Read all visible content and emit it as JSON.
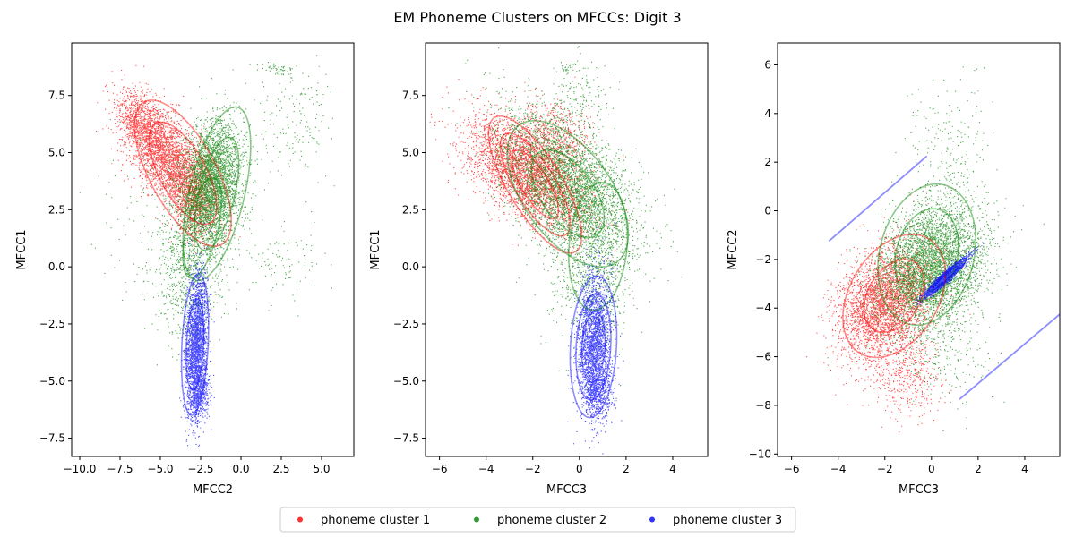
{
  "figure": {
    "title": "EM Phoneme Clusters on MFCCs: Digit 3"
  },
  "legend": {
    "placement": "bottom-center",
    "entries": [
      {
        "label": "phoneme cluster 1",
        "color": "#ff0000"
      },
      {
        "label": "phoneme cluster 2",
        "color": "#008000"
      },
      {
        "label": "phoneme cluster 3",
        "color": "#0000ff"
      }
    ]
  },
  "chart_data": [
    {
      "type": "scatter",
      "xlabel": "MFCC2",
      "ylabel": "MFCC1",
      "xlim": [
        -10.5,
        7.0
      ],
      "ylim": [
        -8.3,
        9.8
      ],
      "xticks": [
        -10.0,
        -7.5,
        -5.0,
        -2.5,
        0.0,
        2.5,
        5.0
      ],
      "xtick_labels": [
        "−10.0",
        "−7.5",
        "−5.0",
        "−2.5",
        "0.0",
        "2.5",
        "5.0"
      ],
      "yticks": [
        -7.5,
        -5.0,
        -2.5,
        0.0,
        2.5,
        5.0,
        7.5
      ],
      "ytick_labels": [
        "−7.5",
        "−5.0",
        "−2.5",
        "0.0",
        "2.5",
        "5.0",
        "7.5"
      ],
      "grid": false,
      "series": [
        {
          "color": "#ff0000",
          "points": [
            {
              "mx": -4.5,
              "my": 4.7,
              "sx": 1.3,
              "sy": 1.15,
              "rho": -0.55,
              "w": 0.4,
              "n": 2600
            },
            {
              "mx": -6.2,
              "my": 6.3,
              "sx": 0.8,
              "sy": 0.65,
              "rho": -0.4,
              "w": 0.1,
              "n": 700
            },
            {
              "mx": -3.0,
              "my": 3.0,
              "sx": 0.7,
              "sy": 0.9,
              "rho": -0.3,
              "w": 0.15,
              "n": 700
            }
          ],
          "ellipses": [
            {
              "cx": -3.6,
              "cy": 4.1,
              "sx": 1.5,
              "sy": 1.6,
              "rho": -0.65,
              "nsig": [
                1.4,
                2.0
              ]
            }
          ]
        },
        {
          "color": "#008000",
          "points": [
            {
              "mx": -1.8,
              "my": 3.6,
              "sx": 0.9,
              "sy": 1.4,
              "rho": 0.2,
              "w": 0.5,
              "n": 3800
            },
            {
              "mx": -3.2,
              "my": 0.3,
              "sx": 1.0,
              "sy": 1.8,
              "rho": 0.1,
              "w": 0.2,
              "n": 900
            },
            {
              "mx": 3.5,
              "my": 6.5,
              "sx": 1.3,
              "sy": 1.3,
              "rho": 0.1,
              "w": 0.04,
              "n": 170
            },
            {
              "mx": 2.5,
              "my": 0.2,
              "sx": 1.5,
              "sy": 0.9,
              "rho": 0.1,
              "w": 0.03,
              "n": 100
            },
            {
              "mx": 2.2,
              "my": 8.7,
              "sx": 0.6,
              "sy": 0.15,
              "rho": -0.3,
              "w": 0.01,
              "n": 45
            },
            {
              "mx": -5.0,
              "my": 2.0,
              "sx": 2.0,
              "sy": 2.0,
              "rho": 0.0,
              "w": 0.04,
              "n": 180
            }
          ],
          "ellipses": [
            {
              "cx": -1.5,
              "cy": 3.2,
              "sx": 1.05,
              "sy": 1.9,
              "rho": 0.55,
              "nsig": [
                1.3,
                2.0
              ]
            },
            {
              "cx": -2.4,
              "cy": 1.7,
              "sx": 1.2,
              "sy": 2.2,
              "rho": 0.55,
              "nsig": [
                1.0
              ]
            }
          ]
        },
        {
          "color": "#0000ff",
          "points": [
            {
              "mx": -2.8,
              "my": -3.3,
              "sx": 0.32,
              "sy": 1.5,
              "rho": 0.3,
              "w": 0.3,
              "n": 2300
            },
            {
              "mx": -2.6,
              "my": -5.5,
              "sx": 0.3,
              "sy": 0.6,
              "rho": 0.2,
              "w": 0.08,
              "n": 500
            }
          ],
          "ellipses": [
            {
              "cx": -2.85,
              "cy": -3.4,
              "sx": 0.42,
              "sy": 1.55,
              "rho": 0.25,
              "nsig": [
                1.3,
                2.0
              ]
            }
          ]
        }
      ],
      "segments": []
    },
    {
      "type": "scatter",
      "xlabel": "MFCC3",
      "ylabel": "MFCC1",
      "xlim": [
        -6.6,
        5.5
      ],
      "ylim": [
        -8.3,
        9.8
      ],
      "xticks": [
        -6,
        -4,
        -2,
        0,
        2,
        4
      ],
      "xtick_labels": [
        "−6",
        "−4",
        "−2",
        "0",
        "2",
        "4"
      ],
      "yticks": [
        -7.5,
        -5.0,
        -2.5,
        0.0,
        2.5,
        5.0,
        7.5
      ],
      "ytick_labels": [
        "−7.5",
        "−5.0",
        "−2.5",
        "0.0",
        "2.5",
        "5.0",
        "7.5"
      ],
      "grid": false,
      "series": [
        {
          "color": "#ff0000",
          "points": [
            {
              "mx": -2.3,
              "my": 4.2,
              "sx": 1.3,
              "sy": 1.2,
              "rho": -0.55,
              "w": 0.45,
              "n": 3200
            },
            {
              "mx": -1.0,
              "my": 5.8,
              "sx": 0.8,
              "sy": 0.8,
              "rho": -0.2,
              "w": 0.08,
              "n": 500
            }
          ],
          "ellipses": [
            {
              "cx": -1.9,
              "cy": 3.6,
              "sx": 1.0,
              "sy": 1.5,
              "rho": -0.75,
              "nsig": [
                1.0,
                1.5,
                2.0
              ]
            }
          ]
        },
        {
          "color": "#008000",
          "points": [
            {
              "mx": -0.5,
              "my": 3.5,
              "sx": 1.4,
              "sy": 1.6,
              "rho": -0.5,
              "w": 0.45,
              "n": 3800
            },
            {
              "mx": 0.6,
              "my": 0.0,
              "sx": 0.9,
              "sy": 1.8,
              "rho": 0.0,
              "w": 0.2,
              "n": 900
            },
            {
              "mx": 0.0,
              "my": 7.3,
              "sx": 0.7,
              "sy": 0.8,
              "rho": 0.0,
              "w": 0.02,
              "n": 150
            },
            {
              "mx": -0.5,
              "my": 8.7,
              "sx": 0.3,
              "sy": 0.15,
              "rho": 0.0,
              "w": 0.005,
              "n": 30
            }
          ],
          "ellipses": [
            {
              "cx": -0.5,
              "cy": 3.2,
              "sx": 1.3,
              "sy": 1.6,
              "rho": -0.55,
              "nsig": [
                1.2,
                2.0
              ]
            },
            {
              "cx": 0.8,
              "cy": 0.9,
              "sx": 0.9,
              "sy": 2.0,
              "rho": 0.15,
              "nsig": [
                1.4
              ]
            }
          ]
        },
        {
          "color": "#0000ff",
          "points": [
            {
              "mx": 0.6,
              "my": -3.3,
              "sx": 0.35,
              "sy": 1.5,
              "rho": 0.1,
              "w": 0.3,
              "n": 2300
            },
            {
              "mx": 0.8,
              "my": -5.5,
              "sx": 0.3,
              "sy": 0.6,
              "rho": 0.0,
              "w": 0.08,
              "n": 500
            }
          ],
          "ellipses": [
            {
              "cx": 0.6,
              "cy": -3.5,
              "sx": 0.5,
              "sy": 1.55,
              "rho": 0.15,
              "nsig": [
                1.0,
                1.5,
                2.0
              ]
            }
          ]
        }
      ],
      "segments": []
    },
    {
      "type": "scatter",
      "xlabel": "MFCC3",
      "ylabel": "MFCC2",
      "xlim": [
        -6.6,
        5.5
      ],
      "ylim": [
        -10.1,
        6.9
      ],
      "xticks": [
        -6,
        -4,
        -2,
        0,
        2,
        4
      ],
      "xtick_labels": [
        "−6",
        "−4",
        "−2",
        "0",
        "2",
        "4"
      ],
      "yticks": [
        -10,
        -8,
        -6,
        -4,
        -2,
        0,
        2,
        4,
        6
      ],
      "ytick_labels": [
        "−10",
        "−8",
        "−6",
        "−4",
        "−2",
        "0",
        "2",
        "4",
        "6"
      ],
      "grid": false,
      "series": [
        {
          "color": "#ff0000",
          "points": [
            {
              "mx": -2.0,
              "my": -3.8,
              "sx": 1.0,
              "sy": 1.1,
              "rho": 0.3,
              "w": 0.45,
              "n": 3300
            },
            {
              "mx": -1.0,
              "my": -6.8,
              "sx": 0.7,
              "sy": 0.8,
              "rho": 0.0,
              "w": 0.06,
              "n": 400
            }
          ],
          "ellipses": [
            {
              "cx": -1.6,
              "cy": -3.5,
              "sx": 1.0,
              "sy": 1.15,
              "rho": 0.35,
              "nsig": [
                1.3,
                2.2
              ]
            }
          ]
        },
        {
          "color": "#008000",
          "points": [
            {
              "mx": 0.0,
              "my": -2.2,
              "sx": 1.1,
              "sy": 1.2,
              "rho": 0.2,
              "w": 0.5,
              "n": 4200
            },
            {
              "mx": 0.8,
              "my": 2.0,
              "sx": 0.9,
              "sy": 1.6,
              "rho": 0.0,
              "w": 0.03,
              "n": 260
            },
            {
              "mx": 0.5,
              "my": -5.5,
              "sx": 1.0,
              "sy": 1.2,
              "rho": 0.0,
              "w": 0.04,
              "n": 300
            }
          ],
          "ellipses": [
            {
              "cx": -0.2,
              "cy": -1.8,
              "sx": 1.05,
              "sy": 1.45,
              "rho": 0.2,
              "nsig": [
                1.3,
                2.0
              ]
            }
          ]
        },
        {
          "color": "#0000ff",
          "points": [
            {
              "mx": 0.6,
              "my": -2.7,
              "sx": 0.45,
              "sy": 0.4,
              "rho": 0.95,
              "w": 0.3,
              "n": 1700
            }
          ],
          "ellipses": [
            {
              "cx": 0.6,
              "cy": -2.75,
              "sx": 0.45,
              "sy": 0.4,
              "rho": 0.96,
              "nsig": [
                1.2,
                2.0
              ]
            }
          ]
        }
      ],
      "segments": [
        {
          "color": "#0000ff",
          "x1": -4.4,
          "y1": -1.25,
          "x2": -0.2,
          "y2": 2.25
        },
        {
          "color": "#0000ff",
          "x1": 1.2,
          "y1": -7.75,
          "x2": 5.5,
          "y2": -4.25
        }
      ]
    }
  ]
}
